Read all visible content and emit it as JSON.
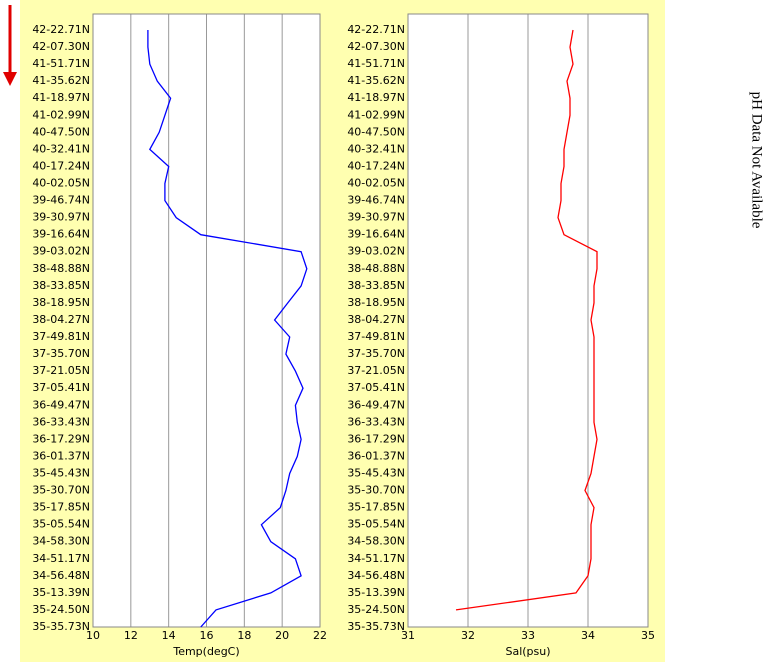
{
  "chart_data": [
    {
      "type": "line",
      "x_label": "Temp(degC)",
      "xlim": [
        10,
        22
      ],
      "xticks": [
        10,
        12,
        14,
        16,
        18,
        20,
        22
      ],
      "grid": true,
      "categories": [
        "42-22.71N",
        "42-07.30N",
        "41-51.71N",
        "41-35.62N",
        "41-18.97N",
        "41-02.99N",
        "40-47.50N",
        "40-32.41N",
        "40-17.24N",
        "40-02.05N",
        "39-46.74N",
        "39-30.97N",
        "39-16.64N",
        "39-03.02N",
        "38-48.88N",
        "38-33.85N",
        "38-18.95N",
        "38-04.27N",
        "37-49.81N",
        "37-35.70N",
        "37-21.05N",
        "37-05.41N",
        "36-49.47N",
        "36-33.43N",
        "36-17.29N",
        "36-01.37N",
        "35-45.43N",
        "35-30.70N",
        "35-17.85N",
        "35-05.54N",
        "34-58.30N",
        "34-51.17N",
        "34-56.48N",
        "35-13.39N",
        "35-24.50N",
        "35-35.73N"
      ],
      "series": [
        {
          "name": "Temp",
          "color": "#0000ff",
          "values": [
            12.9,
            12.9,
            13.0,
            13.4,
            14.1,
            13.8,
            13.5,
            13.0,
            14.0,
            13.8,
            13.8,
            14.4,
            15.7,
            21.0,
            21.3,
            21.0,
            20.3,
            19.6,
            20.4,
            20.2,
            20.7,
            21.1,
            20.7,
            20.8,
            21.0,
            20.8,
            20.4,
            20.2,
            19.9,
            18.9,
            19.4,
            20.7,
            21.0,
            19.4,
            16.5,
            15.7
          ]
        }
      ]
    },
    {
      "type": "line",
      "x_label": "Sal(psu)",
      "xlim": [
        31,
        35
      ],
      "xticks": [
        31,
        32,
        33,
        34,
        35
      ],
      "grid": true,
      "categories": [
        "42-22.71N",
        "42-07.30N",
        "41-51.71N",
        "41-35.62N",
        "41-18.97N",
        "41-02.99N",
        "40-47.50N",
        "40-32.41N",
        "40-17.24N",
        "40-02.05N",
        "39-46.74N",
        "39-30.97N",
        "39-16.64N",
        "39-03.02N",
        "38-48.88N",
        "38-33.85N",
        "38-18.95N",
        "38-04.27N",
        "37-49.81N",
        "37-35.70N",
        "37-21.05N",
        "37-05.41N",
        "36-49.47N",
        "36-33.43N",
        "36-17.29N",
        "36-01.37N",
        "35-45.43N",
        "35-30.70N",
        "35-17.85N",
        "35-05.54N",
        "34-58.30N",
        "34-51.17N",
        "34-56.48N",
        "35-13.39N",
        "35-24.50N",
        "35-35.73N"
      ],
      "series": [
        {
          "name": "Sal",
          "color": "#ff0000",
          "values": [
            33.75,
            33.7,
            33.75,
            33.65,
            33.7,
            33.7,
            33.65,
            33.6,
            33.6,
            33.55,
            33.55,
            33.5,
            33.6,
            34.15,
            34.15,
            34.1,
            34.1,
            34.05,
            34.1,
            34.1,
            34.1,
            34.1,
            34.1,
            34.1,
            34.15,
            34.1,
            34.05,
            33.95,
            34.1,
            34.05,
            34.05,
            34.05,
            34.0,
            33.8,
            31.8,
            null
          ]
        }
      ]
    }
  ],
  "side_text": "pH Data Not Available"
}
